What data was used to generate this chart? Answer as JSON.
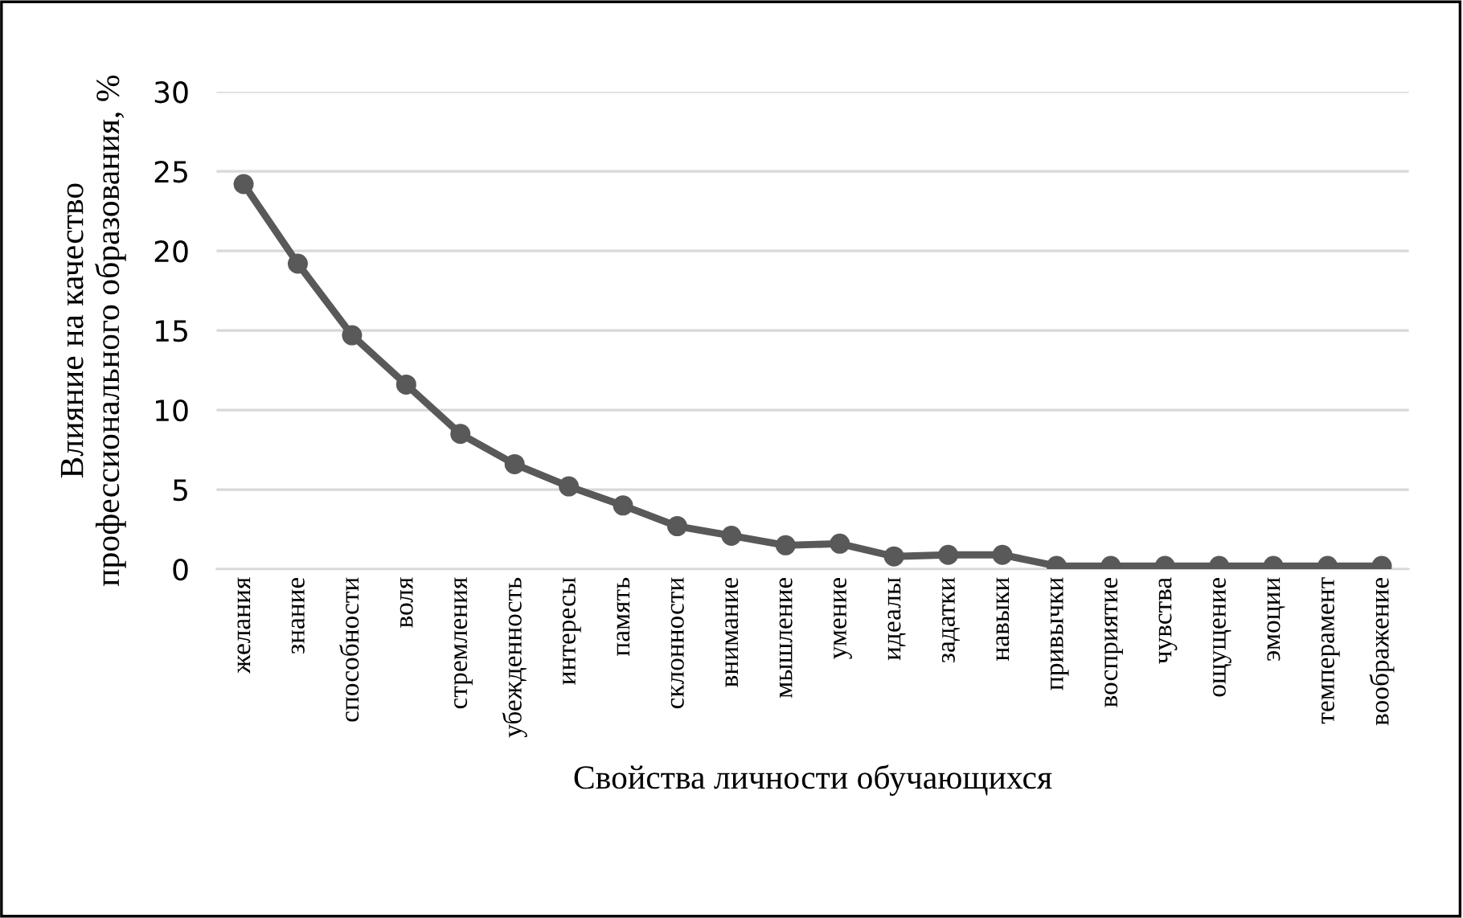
{
  "chart_data": {
    "type": "line",
    "xlabel": "Свойства личности обучающихся",
    "ylabel": "Влияние на качество\nпрофессионального образования, %",
    "categories": [
      "желания",
      "знание",
      "способности",
      "воля",
      "стремления",
      "убежденность",
      "интересы",
      "память",
      "склонности",
      "внимание",
      "мышление",
      "умение",
      "идеалы",
      "задатки",
      "навыки",
      "привычки",
      "восприятие",
      "чувства",
      "ощущение",
      "эмоции",
      "темперамент",
      "воображение"
    ],
    "series": [
      {
        "color": "#595959",
        "values": [
          24.2,
          19.2,
          14.7,
          11.6,
          8.5,
          6.6,
          5.2,
          4.0,
          2.7,
          2.1,
          1.5,
          1.6,
          0.8,
          0.9,
          0.9,
          0.2,
          0.2,
          0.2,
          0.2,
          0.2,
          0.2,
          0.2
        ]
      }
    ],
    "ylim": [
      0,
      30
    ],
    "yticks": [
      0,
      5,
      10,
      15,
      20,
      25,
      30
    ],
    "grid": "y",
    "marker": "circle",
    "line_style": "solid",
    "legend": false
  }
}
